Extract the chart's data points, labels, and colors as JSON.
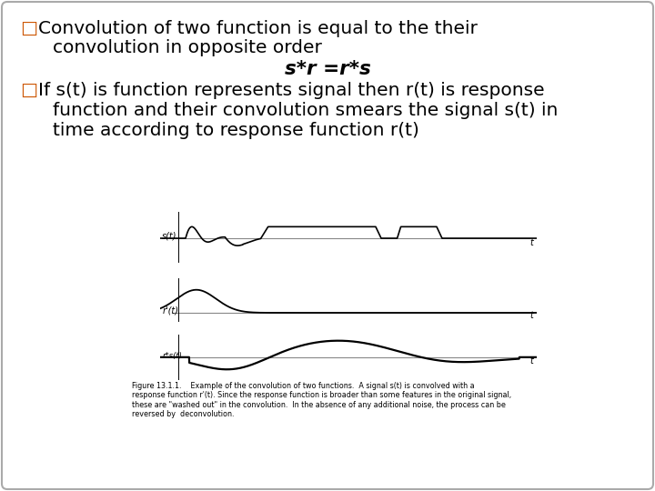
{
  "bg_color": "#ffffff",
  "border_color": "#aaaaaa",
  "bullet": "□",
  "bullet_color": "#cc5500",
  "line1a": "Convolution of two function is equal to the their",
  "line1b": "convolution in opposite order",
  "line1c": "s*r =r*s",
  "line2a": "If s(t) is function represents signal then r(t) is response",
  "line2b": "function and their convolution smears the signal s(t) in",
  "line2c": "time according to response function r(t)",
  "caption": "Figure 13.1.1.    Example of the convolution of two functions.  A signal s(t) is convolved with a\nresponse function r'(t). Since the response function is broader than some features in the original signal,\nthese are \"washed out\" in the convolution.  In the absence of any additional noise, the process can be\nreversed by  deconvolution.",
  "fontsize_main": 14.5,
  "fontsize_formula": 15.5,
  "fontsize_caption": 5.8,
  "fontsize_label": 7
}
